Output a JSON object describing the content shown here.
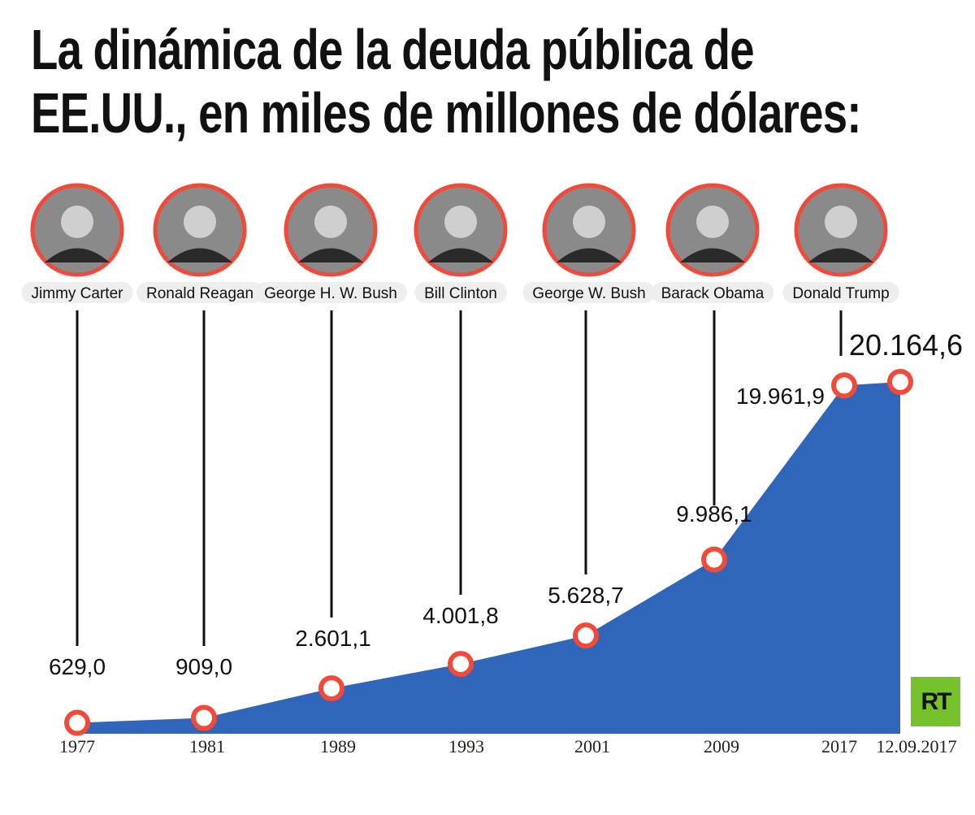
{
  "title_line1": "La dinámica de la deuda pública de",
  "title_line2": "EE.UU., en miles de millones de dólares:",
  "logo_text": "RT",
  "colors": {
    "area": "#2f66b9",
    "marker": "#f04a3a",
    "photo_ring": "#f04a3a",
    "logo": "#76c22a"
  },
  "presidents": [
    {
      "name": "Jimmy Carter",
      "icon": "portrait-photo"
    },
    {
      "name": "Ronald Reagan",
      "icon": "portrait-photo"
    },
    {
      "name": "George H. W. Bush",
      "icon": "portrait-photo"
    },
    {
      "name": "Bill Clinton",
      "icon": "portrait-photo"
    },
    {
      "name": "George W. Bush",
      "icon": "portrait-photo"
    },
    {
      "name": "Barack Obama",
      "icon": "portrait-photo"
    },
    {
      "name": "Donald Trump",
      "icon": "portrait-photo"
    }
  ],
  "chart_data": {
    "type": "area",
    "title": "La dinámica de la deuda pública de EE.UU., en miles de millones de dólares:",
    "categories": [
      "1977",
      "1981",
      "1989",
      "1993",
      "2001",
      "2009",
      "2017",
      "12.09.2017"
    ],
    "values": [
      629.0,
      909.0,
      2601.1,
      4001.8,
      5628.7,
      9986.1,
      19961.9,
      20164.6
    ],
    "value_labels": [
      "629,0",
      "909,0",
      "2.601,1",
      "4.001,8",
      "5.628,7",
      "9.986,1",
      "19.961,9",
      "20.164,6"
    ],
    "xlabel": "",
    "ylabel": "",
    "grid": false,
    "legend": "none"
  }
}
